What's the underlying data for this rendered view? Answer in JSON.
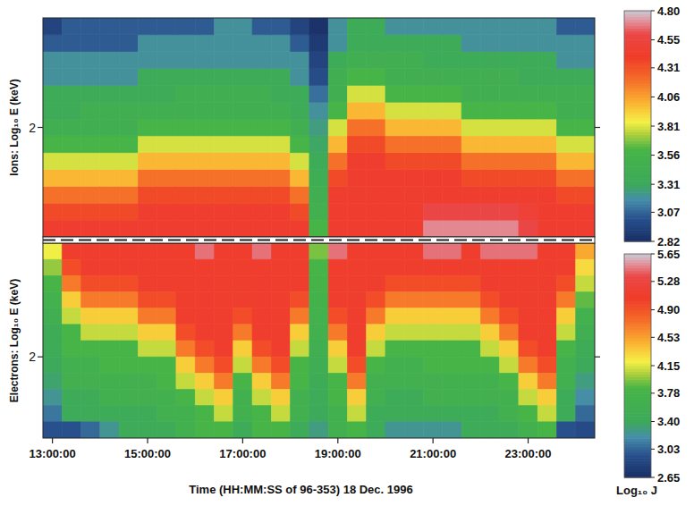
{
  "chart_data": [
    {
      "type": "heatmap",
      "y_label": "Ions: Log₁₀ E (keV)",
      "tick_labels": "y",
      "x": [
        13.0,
        13.4,
        13.8,
        14.2,
        14.6,
        15.0,
        15.4,
        15.8,
        16.2,
        16.6,
        17.0,
        17.4,
        17.8,
        18.2,
        18.6,
        19.0,
        19.4,
        19.8,
        20.2,
        20.6,
        21.0,
        21.4,
        21.8,
        22.2,
        22.6,
        23.0,
        23.4,
        23.8,
        24.2
      ],
      "y": [
        0.8,
        1.0,
        1.2,
        1.4,
        1.6,
        1.8,
        2.0,
        2.2,
        2.4,
        2.6,
        2.8,
        3.0,
        3.2
      ],
      "xlim": [
        12.8,
        24.4
      ],
      "ylim": [
        0.7,
        3.3
      ],
      "yticks": [
        2
      ],
      "z": [
        [
          4.45,
          4.35,
          4.2,
          4.0,
          3.8,
          3.6,
          3.45,
          3.35,
          3.35,
          3.2,
          3.2,
          3.05,
          2.95
        ],
        [
          4.45,
          4.35,
          4.2,
          4.0,
          3.8,
          3.6,
          3.45,
          3.35,
          3.35,
          3.2,
          3.2,
          3.05,
          3.05
        ],
        [
          4.45,
          4.35,
          4.2,
          4.0,
          3.8,
          3.6,
          3.45,
          3.45,
          3.35,
          3.2,
          3.2,
          3.05,
          3.05
        ],
        [
          4.45,
          4.35,
          4.2,
          4.0,
          3.8,
          3.6,
          3.45,
          3.45,
          3.35,
          3.2,
          3.2,
          3.05,
          3.05
        ],
        [
          4.45,
          4.35,
          4.2,
          4.0,
          3.8,
          3.6,
          3.45,
          3.45,
          3.35,
          3.2,
          3.2,
          3.05,
          3.05
        ],
        [
          4.45,
          4.45,
          4.35,
          4.2,
          4.0,
          3.8,
          3.6,
          3.45,
          3.35,
          3.35,
          3.2,
          3.2,
          3.05
        ],
        [
          4.45,
          4.45,
          4.35,
          4.2,
          4.0,
          3.8,
          3.6,
          3.45,
          3.35,
          3.35,
          3.2,
          3.2,
          3.05
        ],
        [
          4.45,
          4.45,
          4.35,
          4.2,
          4.0,
          3.8,
          3.6,
          3.45,
          3.45,
          3.35,
          3.2,
          3.2,
          3.05
        ],
        [
          4.45,
          4.45,
          4.35,
          4.2,
          4.0,
          3.8,
          3.6,
          3.45,
          3.45,
          3.35,
          3.2,
          3.2,
          3.05
        ],
        [
          4.45,
          4.45,
          4.35,
          4.2,
          4.0,
          3.8,
          3.6,
          3.45,
          3.45,
          3.35,
          3.2,
          3.2,
          3.2
        ],
        [
          4.45,
          4.45,
          4.35,
          4.2,
          4.0,
          3.8,
          3.6,
          3.45,
          3.45,
          3.35,
          3.2,
          3.2,
          3.2
        ],
        [
          4.45,
          4.45,
          4.35,
          4.2,
          4.0,
          3.8,
          3.6,
          3.45,
          3.45,
          3.35,
          3.2,
          3.2,
          3.05
        ],
        [
          4.45,
          4.45,
          4.35,
          4.2,
          4.0,
          3.8,
          3.6,
          3.45,
          3.35,
          3.35,
          3.2,
          3.2,
          3.05
        ],
        [
          4.45,
          4.35,
          4.2,
          4.0,
          3.8,
          3.6,
          3.45,
          3.35,
          3.35,
          3.2,
          3.2,
          3.05,
          2.95
        ],
        [
          3.6,
          3.5,
          3.45,
          3.4,
          3.35,
          3.3,
          3.25,
          3.2,
          3.1,
          3.0,
          2.95,
          2.9,
          2.85
        ],
        [
          4.45,
          4.45,
          4.45,
          4.35,
          4.2,
          4.0,
          3.8,
          3.6,
          3.45,
          3.45,
          3.35,
          3.2,
          3.2
        ],
        [
          4.45,
          4.45,
          4.45,
          4.45,
          4.45,
          4.35,
          4.2,
          4.0,
          3.8,
          3.6,
          3.45,
          3.35,
          3.35
        ],
        [
          4.45,
          4.45,
          4.45,
          4.45,
          4.45,
          4.35,
          4.2,
          4.0,
          3.8,
          3.6,
          3.45,
          3.35,
          3.35
        ],
        [
          4.45,
          4.45,
          4.45,
          4.45,
          4.35,
          4.2,
          4.0,
          3.8,
          3.6,
          3.45,
          3.45,
          3.35,
          3.2
        ],
        [
          4.45,
          4.45,
          4.45,
          4.45,
          4.35,
          4.2,
          4.0,
          3.8,
          3.6,
          3.45,
          3.45,
          3.35,
          3.2
        ],
        [
          4.7,
          4.6,
          4.45,
          4.45,
          4.35,
          4.2,
          4.0,
          3.8,
          3.6,
          3.45,
          3.35,
          3.35,
          3.2
        ],
        [
          4.7,
          4.6,
          4.45,
          4.45,
          4.35,
          4.2,
          4.0,
          3.8,
          3.6,
          3.45,
          3.35,
          3.35,
          3.2
        ],
        [
          4.7,
          4.6,
          4.45,
          4.35,
          4.2,
          4.0,
          3.8,
          3.6,
          3.45,
          3.45,
          3.35,
          3.2,
          3.2
        ],
        [
          4.7,
          4.6,
          4.45,
          4.35,
          4.2,
          4.0,
          3.8,
          3.6,
          3.45,
          3.45,
          3.35,
          3.2,
          3.2
        ],
        [
          4.7,
          4.6,
          4.45,
          4.35,
          4.2,
          4.0,
          3.8,
          3.6,
          3.45,
          3.45,
          3.35,
          3.2,
          3.2
        ],
        [
          4.6,
          4.5,
          4.45,
          4.35,
          4.2,
          4.0,
          3.8,
          3.6,
          3.45,
          3.35,
          3.35,
          3.2,
          3.2
        ],
        [
          4.45,
          4.45,
          4.45,
          4.35,
          4.2,
          4.0,
          3.8,
          3.6,
          3.45,
          3.35,
          3.35,
          3.2,
          3.2
        ],
        [
          4.45,
          4.45,
          4.35,
          4.2,
          4.0,
          3.8,
          3.6,
          3.45,
          3.45,
          3.35,
          3.2,
          3.2,
          3.05
        ],
        [
          4.45,
          4.45,
          4.35,
          4.2,
          4.0,
          3.8,
          3.6,
          3.45,
          3.45,
          3.35,
          3.2,
          3.2,
          3.05
        ]
      ],
      "colorbar": {
        "lim": [
          2.82,
          4.8
        ],
        "ticks": [
          {
            "value": 4.8,
            "label": "4.80"
          },
          4.55,
          4.31,
          4.06,
          3.81,
          3.56,
          3.31,
          3.07,
          2.82
        ]
      }
    },
    {
      "type": "heatmap",
      "y_label": "Electrons: Log₁₀ E (keV)",
      "x_label": "Time (HH:MM:SS of 96-353) 18 Dec. 1996",
      "x": [
        13.0,
        13.4,
        13.8,
        14.2,
        14.6,
        15.0,
        15.4,
        15.8,
        16.2,
        16.6,
        17.0,
        17.4,
        17.8,
        18.2,
        18.6,
        19.0,
        19.4,
        19.8,
        20.2,
        20.6,
        21.0,
        21.4,
        21.8,
        22.2,
        22.6,
        23.0,
        23.4,
        23.8,
        24.2
      ],
      "y": [
        0.7,
        0.9,
        1.1,
        1.3,
        1.5,
        1.7,
        1.9,
        2.1,
        2.3,
        2.5,
        2.7,
        2.9
      ],
      "xlim": [
        12.8,
        24.4
      ],
      "ylim": [
        3.0,
        0.6
      ],
      "xticks": [
        {
          "value": 13,
          "label": "13:00:00"
        },
        {
          "value": 15,
          "label": "15:00:00"
        },
        {
          "value": 17,
          "label": "17:00:00"
        },
        {
          "value": 19,
          "label": "19:00:00"
        },
        {
          "value": 21,
          "label": "21:00:00"
        },
        {
          "value": 23,
          "label": "23:00:00"
        }
      ],
      "yticks": [
        2
      ],
      "z": [
        [
          4.2,
          4.0,
          3.85,
          3.7,
          3.6,
          3.5,
          3.45,
          3.4,
          3.35,
          3.25,
          3.1,
          2.95
        ],
        [
          5.1,
          4.95,
          4.7,
          4.35,
          4.1,
          3.85,
          3.85,
          3.65,
          3.65,
          3.45,
          3.45,
          2.95
        ],
        [
          5.1,
          5.1,
          4.95,
          4.7,
          4.35,
          4.1,
          3.85,
          3.65,
          3.65,
          3.45,
          3.45,
          3.05
        ],
        [
          5.1,
          5.1,
          4.95,
          4.7,
          4.35,
          4.1,
          3.85,
          3.85,
          3.65,
          3.65,
          3.45,
          3.25
        ],
        [
          5.1,
          5.1,
          4.95,
          4.7,
          4.35,
          4.1,
          3.85,
          3.85,
          3.65,
          3.65,
          3.45,
          3.45
        ],
        [
          5.1,
          5.1,
          5.1,
          4.95,
          4.7,
          4.35,
          4.1,
          3.85,
          3.65,
          3.65,
          3.45,
          3.45
        ],
        [
          5.1,
          5.1,
          5.1,
          4.95,
          4.7,
          4.35,
          4.1,
          3.85,
          3.85,
          3.65,
          3.65,
          3.45
        ],
        [
          5.1,
          5.1,
          5.1,
          5.1,
          5.1,
          4.95,
          4.7,
          4.35,
          4.1,
          3.85,
          3.65,
          3.65
        ],
        [
          5.45,
          5.1,
          5.1,
          5.1,
          5.1,
          5.1,
          4.95,
          4.7,
          4.35,
          4.1,
          3.85,
          3.85
        ],
        [
          5.1,
          5.1,
          5.1,
          5.1,
          5.1,
          5.1,
          5.1,
          4.95,
          4.7,
          4.35,
          4.1,
          3.85
        ],
        [
          5.1,
          5.1,
          5.1,
          5.1,
          4.95,
          4.7,
          4.35,
          4.1,
          3.85,
          3.65,
          3.65,
          3.45
        ],
        [
          5.45,
          5.1,
          5.1,
          5.1,
          5.1,
          5.1,
          4.95,
          4.7,
          4.35,
          4.1,
          3.85,
          3.85
        ],
        [
          5.1,
          5.1,
          5.1,
          5.1,
          5.1,
          5.1,
          5.1,
          4.95,
          4.7,
          4.35,
          4.1,
          3.85
        ],
        [
          5.1,
          5.1,
          5.1,
          4.95,
          4.7,
          4.35,
          4.1,
          3.85,
          3.85,
          3.65,
          3.65,
          3.45
        ],
        [
          3.95,
          3.85,
          3.8,
          3.75,
          3.7,
          3.65,
          3.6,
          3.55,
          3.5,
          3.45,
          3.4,
          3.3
        ],
        [
          5.45,
          5.1,
          5.1,
          5.1,
          4.95,
          4.7,
          4.35,
          4.1,
          3.85,
          3.85,
          3.65,
          3.65
        ],
        [
          5.1,
          5.1,
          5.1,
          5.1,
          5.1,
          5.1,
          5.1,
          4.95,
          4.7,
          4.35,
          4.1,
          3.85
        ],
        [
          5.1,
          5.1,
          5.1,
          4.95,
          4.7,
          4.35,
          4.1,
          3.85,
          3.65,
          3.65,
          3.45,
          3.45
        ],
        [
          5.1,
          5.1,
          4.95,
          4.7,
          4.35,
          4.1,
          3.85,
          3.65,
          3.65,
          3.45,
          3.45,
          3.25
        ],
        [
          5.1,
          5.1,
          4.95,
          4.7,
          4.35,
          4.1,
          3.85,
          3.65,
          3.65,
          3.45,
          3.45,
          3.25
        ],
        [
          5.45,
          5.1,
          4.95,
          4.7,
          4.35,
          4.1,
          3.85,
          3.85,
          3.65,
          3.65,
          3.45,
          3.25
        ],
        [
          5.45,
          5.1,
          4.95,
          4.7,
          4.35,
          4.1,
          3.85,
          3.85,
          3.65,
          3.65,
          3.45,
          3.25
        ],
        [
          5.1,
          5.1,
          4.95,
          4.7,
          4.35,
          4.1,
          3.85,
          3.85,
          3.65,
          3.65,
          3.45,
          3.45
        ],
        [
          5.45,
          5.1,
          5.1,
          4.95,
          4.7,
          4.35,
          4.1,
          3.85,
          3.65,
          3.65,
          3.45,
          3.45
        ],
        [
          5.45,
          5.1,
          5.1,
          5.1,
          4.95,
          4.7,
          4.35,
          4.1,
          3.85,
          3.65,
          3.65,
          3.45
        ],
        [
          5.45,
          5.1,
          5.1,
          5.1,
          5.1,
          5.1,
          4.95,
          4.7,
          4.35,
          4.1,
          3.85,
          3.65
        ],
        [
          5.1,
          5.1,
          5.1,
          5.1,
          5.1,
          5.1,
          5.1,
          4.95,
          4.7,
          4.35,
          4.1,
          3.85
        ],
        [
          5.1,
          5.1,
          4.95,
          4.7,
          4.35,
          4.1,
          3.85,
          3.65,
          3.65,
          3.45,
          3.45,
          2.95
        ],
        [
          4.5,
          4.3,
          4.1,
          3.9,
          3.7,
          3.6,
          3.5,
          3.4,
          3.3,
          3.2,
          3.05,
          2.9
        ]
      ],
      "colorbar": {
        "lim": [
          2.65,
          5.65
        ],
        "ticks": [
          5.65,
          5.28,
          {
            "value": 4.9,
            "label": "4.90"
          },
          4.53,
          4.15,
          3.78,
          {
            "value": 3.4,
            "label": "3.40"
          },
          3.03,
          2.65
        ],
        "label": "Log₁₀ J"
      }
    }
  ]
}
